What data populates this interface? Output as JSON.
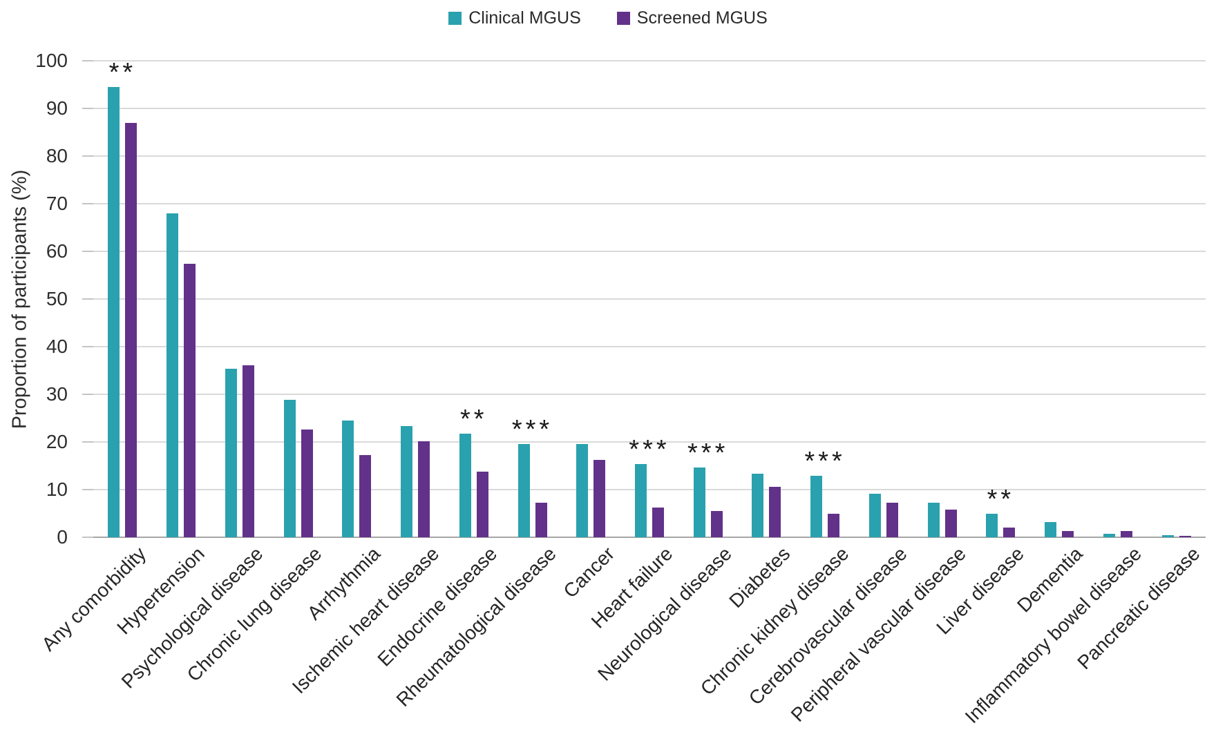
{
  "chart_data": {
    "type": "bar",
    "title": "",
    "xlabel": "",
    "ylabel": "Proportion of participants (%)",
    "ylim": [
      0,
      100
    ],
    "y_tick_step": 10,
    "y_tick_labels": [
      "0",
      "10",
      "20",
      "30",
      "40",
      "50",
      "60",
      "70",
      "80",
      "90",
      "100"
    ],
    "grid": "horizontal",
    "legend_position": "top-center",
    "categories": [
      "Any comorbidity",
      "Hypertension",
      "Psychological disease",
      "Chronic lung disease",
      "Arrhythmia",
      "Ischemic heart disease",
      "Endocrine disease",
      "Rheumatological disease",
      "Cancer",
      "Heart failure",
      "Neurological disease",
      "Diabetes",
      "Chronic kidney disease",
      "Cerebrovascular disease",
      "Peripheral vascular disease",
      "Liver disease",
      "Dementia",
      "Inflammatory bowel disease",
      "Pancreatic disease"
    ],
    "series": [
      {
        "name": "Clinical MGUS",
        "color": "#2aa1ae",
        "values": [
          94.5,
          68.0,
          35.4,
          28.8,
          24.5,
          23.3,
          21.7,
          19.6,
          19.6,
          15.3,
          14.6,
          13.4,
          12.9,
          9.2,
          7.2,
          5.0,
          3.2,
          0.7,
          0.4
        ]
      },
      {
        "name": "Screened MGUS",
        "color": "#623189",
        "values": [
          86.9,
          57.4,
          36.1,
          22.6,
          17.2,
          20.1,
          13.7,
          7.2,
          16.2,
          6.3,
          5.5,
          10.6,
          4.9,
          7.2,
          5.8,
          2.1,
          1.3,
          1.3,
          0.3
        ]
      }
    ],
    "significance_markers": [
      "**",
      "",
      "",
      "",
      "",
      "",
      "**",
      "***",
      "",
      "***",
      "***",
      "",
      "***",
      "",
      "",
      "**",
      "",
      "",
      ""
    ],
    "colors": {
      "gridline": "#d9d9d9",
      "zero_line": "#a6a6a6",
      "text": "#2e2e2e",
      "significance": "#1a1a1a"
    }
  }
}
